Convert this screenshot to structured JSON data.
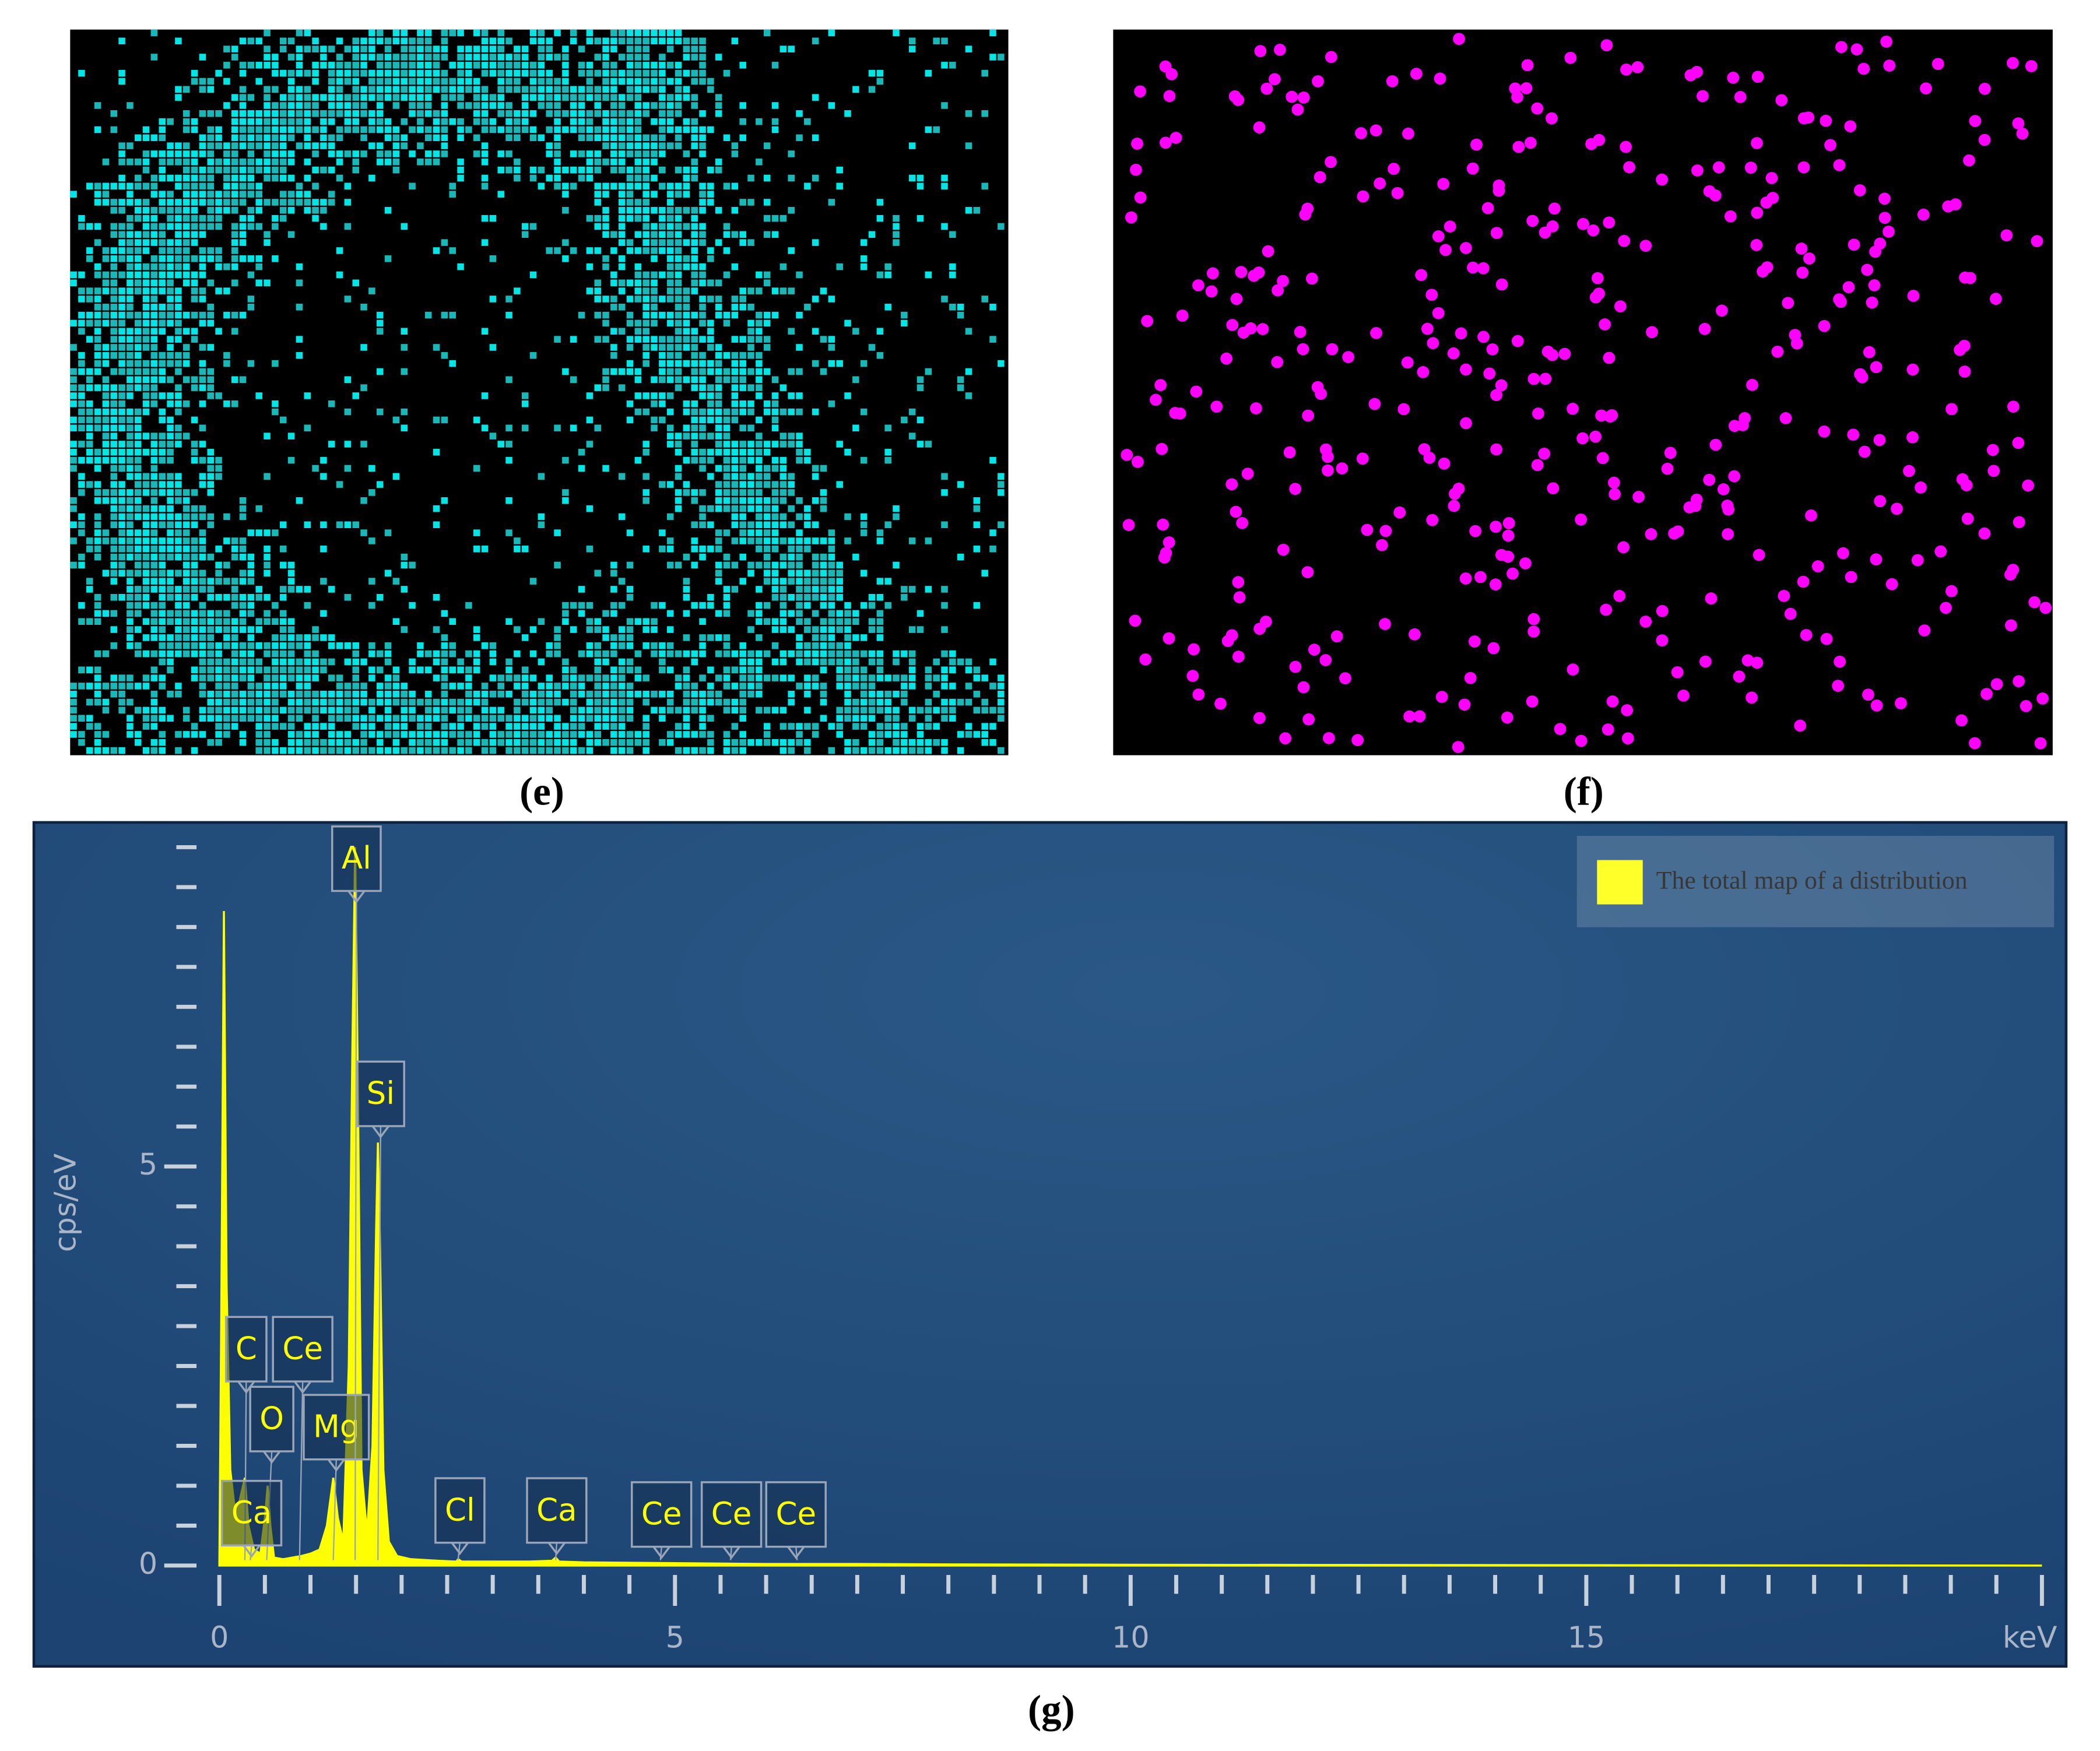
{
  "panels": [
    {
      "label": "(e)"
    },
    {
      "label": "(f)"
    }
  ],
  "chart_data": {
    "type": "line",
    "label": "(g)",
    "x_label": "keV",
    "y_label": "cps/eV",
    "xlim": [
      0,
      20
    ],
    "xticks": [
      0,
      5,
      10,
      15
    ],
    "ylim": [
      0,
      9.26
    ],
    "yticks": [
      0,
      5
    ],
    "color": "#ffff00",
    "x": [
      0,
      0.02,
      0.05,
      0.08,
      0.12,
      0.18,
      0.24,
      0.28,
      0.32,
      0.38,
      0.45,
      0.5,
      0.53,
      0.56,
      0.6,
      0.7,
      0.8,
      0.9,
      1.0,
      1.1,
      1.18,
      1.25,
      1.3,
      1.36,
      1.42,
      1.46,
      1.49,
      1.52,
      1.56,
      1.62,
      1.68,
      1.72,
      1.74,
      1.76,
      1.8,
      1.86,
      1.95,
      2.1,
      2.4,
      2.6,
      2.62,
      2.66,
      3.0,
      3.4,
      3.65,
      3.69,
      3.73,
      4.0,
      5,
      6,
      7,
      8,
      10,
      12,
      15,
      20
    ],
    "series": [
      {
        "name": "The total map of a distribution",
        "color": "#ffff00",
        "values": [
          0,
          3,
          8.2,
          3.5,
          1.2,
          0.6,
          0.9,
          1.1,
          0.5,
          0.2,
          0.15,
          0.6,
          1.0,
          0.5,
          0.1,
          0.08,
          0.1,
          0.12,
          0.15,
          0.2,
          0.5,
          1.1,
          0.6,
          0.3,
          2.5,
          6.5,
          9.0,
          6.0,
          1.2,
          0.4,
          1.5,
          4.2,
          5.3,
          4.2,
          1.2,
          0.3,
          0.12,
          0.08,
          0.06,
          0.05,
          0.08,
          0.05,
          0.05,
          0.05,
          0.06,
          0.1,
          0.05,
          0.04,
          0.03,
          0.02,
          0.02,
          0.015,
          0.01,
          0.008,
          0.005,
          0
        ]
      }
    ],
    "annotations": [
      {
        "text": "C",
        "x": 0.28
      },
      {
        "text": "Ce",
        "x": 0.88
      },
      {
        "text": "O",
        "x": 0.52
      },
      {
        "text": "Mg",
        "x": 1.25
      },
      {
        "text": "Ca",
        "x": 0.34
      },
      {
        "text": "Al",
        "x": 1.49
      },
      {
        "text": "Si",
        "x": 1.74
      },
      {
        "text": "Cl",
        "x": 2.62
      },
      {
        "text": "Ca",
        "x": 3.69
      },
      {
        "text": "Ce",
        "x": 4.84
      },
      {
        "text": "Ce",
        "x": 5.61
      },
      {
        "text": "Ce",
        "x": 6.34
      }
    ],
    "legend": "top-right"
  }
}
